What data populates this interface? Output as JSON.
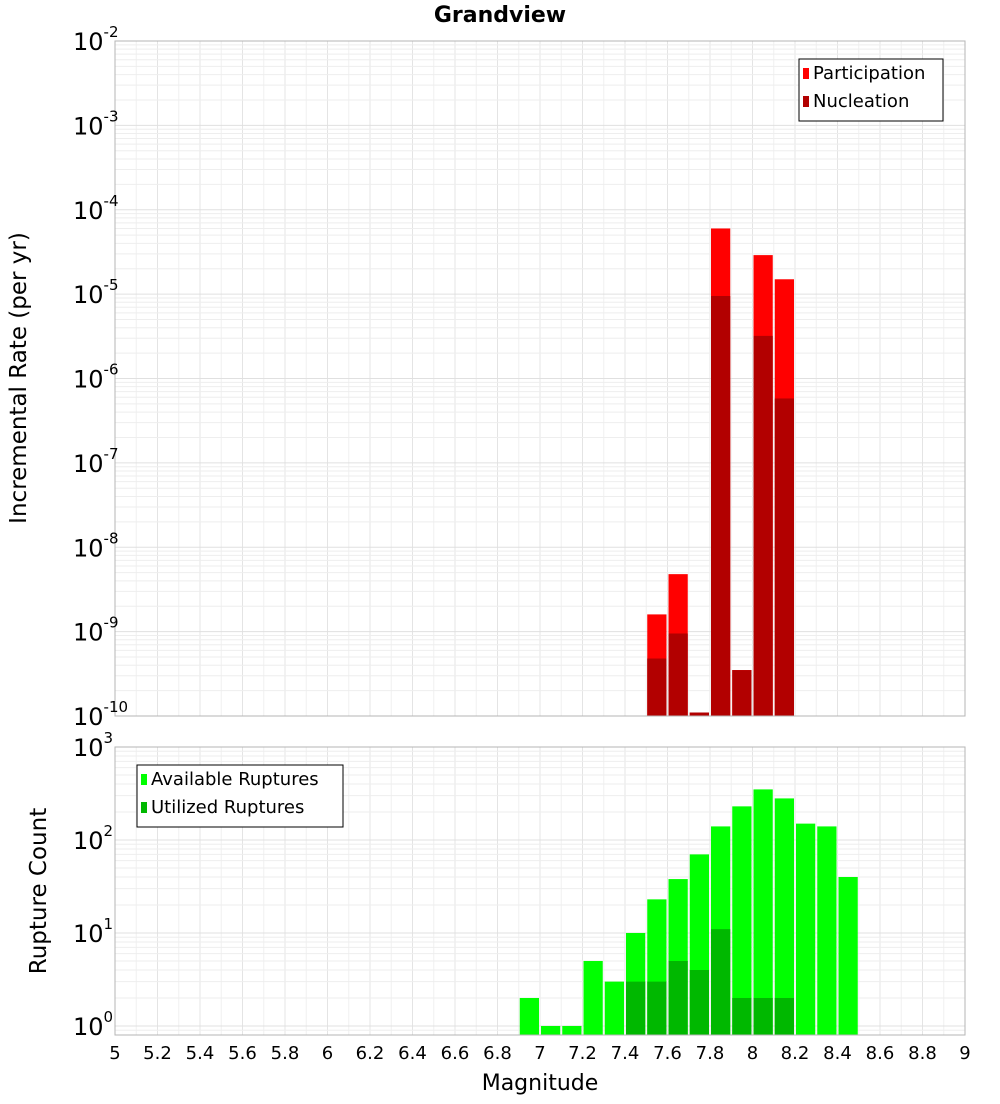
{
  "chart_data": [
    {
      "type": "bar",
      "title": "Grandview",
      "xlabel": "",
      "ylabel": "Incremental Rate (per yr)",
      "yscale": "log",
      "ylim": [
        1e-10,
        0.01
      ],
      "xlim": [
        5,
        9
      ],
      "bin_width": 0.1,
      "yticks": [
        {
          "base": "10",
          "exp": "-10"
        },
        {
          "base": "10",
          "exp": "-9"
        },
        {
          "base": "10",
          "exp": "-8"
        },
        {
          "base": "10",
          "exp": "-7"
        },
        {
          "base": "10",
          "exp": "-6"
        },
        {
          "base": "10",
          "exp": "-5"
        },
        {
          "base": "10",
          "exp": "-4"
        },
        {
          "base": "10",
          "exp": "-3"
        },
        {
          "base": "10",
          "exp": "-2"
        }
      ],
      "legend": {
        "position": "top-right",
        "entries": [
          "Participation",
          "Nucleation"
        ]
      },
      "series": [
        {
          "name": "Participation",
          "color": "#ff0000",
          "x": [
            7.55,
            7.65,
            7.75,
            7.85,
            7.95,
            8.05,
            8.15
          ],
          "values": [
            1.6e-09,
            4.8e-09,
            1.1e-10,
            6e-05,
            3.5e-10,
            2.9e-05,
            1.5e-05
          ]
        },
        {
          "name": "Nucleation",
          "color": "#b20000",
          "x": [
            7.55,
            7.65,
            7.75,
            7.85,
            7.95,
            8.05,
            8.15
          ],
          "values": [
            4.8e-10,
            9.5e-10,
            1.1e-10,
            9.5e-06,
            3.5e-10,
            3.2e-06,
            5.8e-07
          ]
        }
      ]
    },
    {
      "type": "bar",
      "title": "",
      "xlabel": "Magnitude",
      "ylabel": "Rupture Count",
      "yscale": "log",
      "ylim": [
        0.8,
        1000
      ],
      "xlim": [
        5,
        9
      ],
      "bin_width": 0.1,
      "xticks": [
        "5",
        "5.2",
        "5.4",
        "5.6",
        "5.8",
        "6",
        "6.2",
        "6.4",
        "6.6",
        "6.8",
        "7",
        "7.2",
        "7.4",
        "7.6",
        "7.8",
        "8",
        "8.2",
        "8.4",
        "8.6",
        "8.8",
        "9"
      ],
      "yticks": [
        {
          "base": "10",
          "exp": "0"
        },
        {
          "base": "10",
          "exp": "1"
        },
        {
          "base": "10",
          "exp": "2"
        },
        {
          "base": "10",
          "exp": "3"
        }
      ],
      "legend": {
        "position": "top-left",
        "entries": [
          "Available Ruptures",
          "Utilized Ruptures"
        ]
      },
      "series": [
        {
          "name": "Available Ruptures",
          "color": "#00ff00",
          "x": [
            6.95,
            7.05,
            7.15,
            7.25,
            7.35,
            7.45,
            7.55,
            7.65,
            7.75,
            7.85,
            7.95,
            8.05,
            8.15,
            8.25,
            8.35,
            8.45
          ],
          "values": [
            2,
            1,
            1,
            5,
            3,
            10,
            23,
            38,
            70,
            140,
            230,
            350,
            280,
            150,
            140,
            40
          ]
        },
        {
          "name": "Utilized Ruptures",
          "color": "#00b800",
          "x": [
            7.45,
            7.55,
            7.65,
            7.75,
            7.85,
            7.95,
            8.05,
            8.15
          ],
          "values": [
            3,
            3,
            5,
            4,
            11,
            2,
            2,
            2
          ]
        }
      ]
    }
  ]
}
